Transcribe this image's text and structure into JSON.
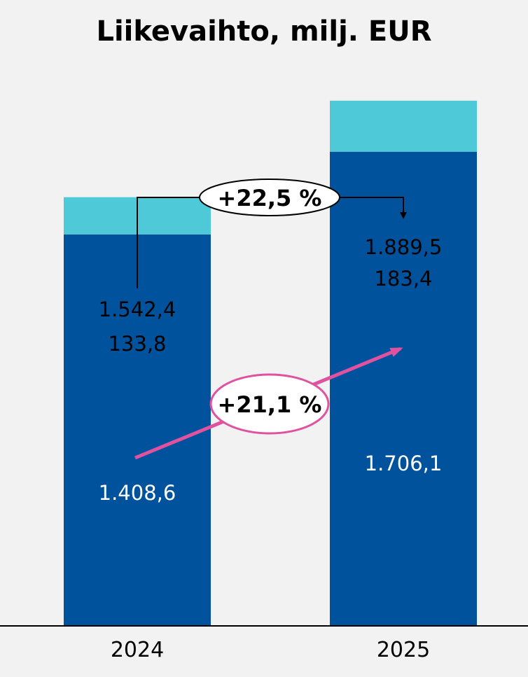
{
  "chart_data": {
    "type": "bar",
    "stacked": true,
    "title": "Liikevaihto, milj. EUR",
    "categories": [
      "2024",
      "2025"
    ],
    "series": [
      {
        "name": "",
        "values": [
          1408.6,
          1706.1
        ],
        "labels": [
          "1.408,6",
          "1.706,1"
        ],
        "color": "#00529c"
      },
      {
        "name": "",
        "values": [
          133.8,
          183.4
        ],
        "labels": [
          "133,8",
          "183,4"
        ],
        "color": "#4ec9d8"
      }
    ],
    "totals": [
      1542.4,
      1889.5
    ],
    "total_labels": [
      "1.542,4",
      "1.889,5"
    ],
    "ylim": [
      0,
      2000
    ],
    "grid": false,
    "legend": "none",
    "annotations": {
      "total_growth": "+22,5 %",
      "main_growth": "+21,1 %"
    },
    "colors": {
      "background": "#f2f2f2",
      "arrow": "#e0529f",
      "axis": "#000000"
    }
  }
}
